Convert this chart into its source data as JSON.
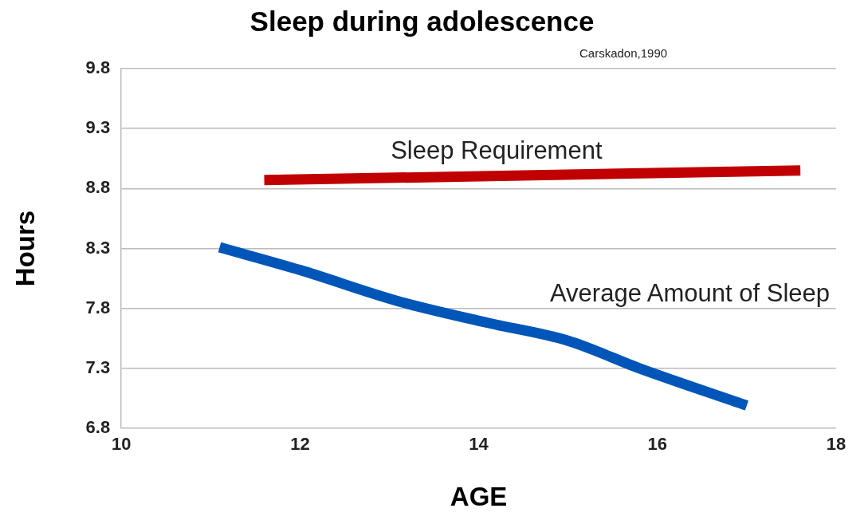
{
  "chart_data": {
    "type": "line",
    "title": "Sleep during adolescence",
    "xlabel": "AGE",
    "ylabel": "Hours",
    "annotations": [
      "Carskadon,1990"
    ],
    "series": [
      {
        "name": "Sleep Requirement",
        "color": "#c00000",
        "x": [
          11.6,
          17.6
        ],
        "values": [
          8.87,
          8.95
        ]
      },
      {
        "name": "Average Amount of Sleep",
        "color": "#0055b8",
        "x": [
          11.1,
          12.0,
          13.1,
          14.1,
          15.0,
          15.8,
          17.0
        ],
        "values": [
          8.31,
          8.12,
          7.86,
          7.68,
          7.53,
          7.3,
          6.99
        ]
      }
    ],
    "xlim": [
      10,
      18
    ],
    "xticks": [
      10,
      12,
      14,
      16,
      18
    ],
    "ylim": [
      6.8,
      9.8
    ],
    "yticks": [
      6.8,
      7.3,
      7.8,
      8.3,
      8.8,
      9.3,
      9.8
    ],
    "grid": "y",
    "legend": false,
    "marker": "none",
    "line_style": "solid"
  }
}
